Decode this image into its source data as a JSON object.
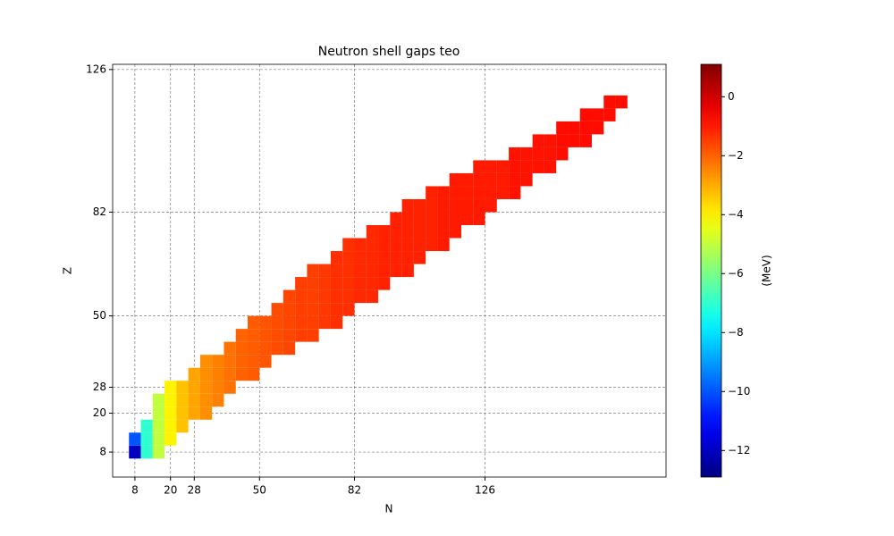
{
  "chart_data": {
    "type": "scatter",
    "title": "Neutron shell gaps teo",
    "x_label": "N",
    "y_label": "Z",
    "colorbar_label": "(MeV)",
    "xlim": [
      0.5,
      187
    ],
    "ylim": [
      0.3,
      127.6
    ],
    "xticks": [
      8,
      20,
      28,
      50,
      82,
      126
    ],
    "yticks": [
      8,
      20,
      28,
      50,
      82,
      126
    ],
    "clim": [
      -12.9,
      1.1
    ],
    "cticks": [
      {
        "value": 0,
        "label": "0"
      },
      {
        "value": -2,
        "label": "−2"
      },
      {
        "value": -4,
        "label": "−4"
      },
      {
        "value": -6,
        "label": "−6"
      },
      {
        "value": -8,
        "label": "−8"
      },
      {
        "value": -10,
        "label": "−10"
      },
      {
        "value": -12,
        "label": "−12"
      }
    ],
    "colormap": "jet",
    "grid": true,
    "x": [
      8,
      12,
      16,
      8,
      12,
      16,
      20,
      12,
      16,
      20,
      24,
      16,
      20,
      24,
      28,
      32,
      16,
      20,
      24,
      28,
      32,
      36,
      20,
      24,
      28,
      32,
      36,
      40,
      28,
      32,
      36,
      40,
      44,
      48,
      32,
      36,
      40,
      44,
      48,
      52,
      40,
      44,
      48,
      52,
      56,
      60,
      44,
      48,
      52,
      56,
      60,
      64,
      68,
      48,
      52,
      56,
      60,
      64,
      68,
      72,
      76,
      56,
      60,
      64,
      68,
      72,
      76,
      80,
      60,
      64,
      68,
      72,
      76,
      80,
      84,
      88,
      64,
      68,
      72,
      76,
      80,
      84,
      88,
      92,
      68,
      72,
      76,
      80,
      84,
      88,
      92,
      96,
      100,
      76,
      80,
      84,
      88,
      92,
      96,
      100,
      104,
      80,
      84,
      88,
      92,
      96,
      100,
      104,
      108,
      112,
      88,
      92,
      96,
      100,
      104,
      108,
      112,
      116,
      96,
      100,
      104,
      108,
      112,
      116,
      120,
      124,
      100,
      104,
      108,
      112,
      116,
      120,
      124,
      128,
      108,
      112,
      116,
      120,
      124,
      128,
      132,
      136,
      116,
      120,
      124,
      128,
      132,
      136,
      140,
      124,
      128,
      132,
      136,
      140,
      144,
      148,
      136,
      140,
      144,
      148,
      152,
      144,
      148,
      152,
      156,
      160,
      152,
      156,
      160,
      164,
      160,
      164,
      168,
      168,
      172
    ],
    "y": [
      8,
      8,
      8,
      12,
      12,
      12,
      12,
      16,
      16,
      16,
      16,
      20,
      20,
      20,
      20,
      20,
      24,
      24,
      24,
      24,
      24,
      24,
      28,
      28,
      28,
      28,
      28,
      28,
      32,
      32,
      32,
      32,
      32,
      32,
      36,
      36,
      36,
      36,
      36,
      36,
      40,
      40,
      40,
      40,
      40,
      40,
      44,
      44,
      44,
      44,
      44,
      44,
      44,
      48,
      48,
      48,
      48,
      48,
      48,
      48,
      48,
      52,
      52,
      52,
      52,
      52,
      52,
      52,
      56,
      56,
      56,
      56,
      56,
      56,
      56,
      56,
      60,
      60,
      60,
      60,
      60,
      60,
      60,
      60,
      64,
      64,
      64,
      64,
      64,
      64,
      64,
      64,
      64,
      68,
      68,
      68,
      68,
      68,
      68,
      68,
      68,
      72,
      72,
      72,
      72,
      72,
      72,
      72,
      72,
      72,
      76,
      76,
      76,
      76,
      76,
      76,
      76,
      76,
      80,
      80,
      80,
      80,
      80,
      80,
      80,
      80,
      84,
      84,
      84,
      84,
      84,
      84,
      84,
      84,
      88,
      88,
      88,
      88,
      88,
      88,
      88,
      88,
      92,
      92,
      92,
      92,
      92,
      92,
      92,
      96,
      96,
      96,
      96,
      96,
      96,
      96,
      100,
      100,
      100,
      100,
      100,
      104,
      104,
      104,
      104,
      104,
      108,
      108,
      108,
      108,
      112,
      112,
      112,
      116,
      116
    ],
    "color_values": [
      -12,
      -7,
      -5,
      -10,
      -7,
      -5,
      -4,
      -7,
      -5,
      -4,
      -3.3,
      -5,
      -4,
      -3.3,
      -2.9,
      -2.6,
      -5,
      -4,
      -3.3,
      -2.9,
      -2.6,
      -2.4,
      -4,
      -3.3,
      -2.9,
      -2.6,
      -2.4,
      -2.2,
      -2.9,
      -2.6,
      -2.4,
      -2.2,
      -2,
      -1.9,
      -2.6,
      -2.4,
      -2.2,
      -2,
      -1.9,
      -1.8,
      -2.2,
      -2,
      -1.9,
      -1.8,
      -1.7,
      -1.6,
      -2,
      -1.9,
      -1.8,
      -1.7,
      -1.6,
      -1.5,
      -1.5,
      -1.9,
      -1.8,
      -1.7,
      -1.6,
      -1.5,
      -1.5,
      -1.4,
      -1.3,
      -1.7,
      -1.6,
      -1.5,
      -1.5,
      -1.4,
      -1.3,
      -1.3,
      -1.6,
      -1.5,
      -1.5,
      -1.4,
      -1.3,
      -1.3,
      -1.2,
      -1.2,
      -1.5,
      -1.5,
      -1.4,
      -1.3,
      -1.3,
      -1.2,
      -1.2,
      -1.1,
      -1.5,
      -1.4,
      -1.3,
      -1.3,
      -1.2,
      -1.2,
      -1.1,
      -1.1,
      -1.1,
      -1.3,
      -1.3,
      -1.2,
      -1.2,
      -1.1,
      -1.1,
      -1.1,
      -1.1,
      -1.3,
      -1.2,
      -1.2,
      -1.1,
      -1.1,
      -1.1,
      -1.1,
      -1.1,
      -1,
      -1.2,
      -1.1,
      -1.1,
      -1.1,
      -1.1,
      -1.1,
      -1,
      -1,
      -1.1,
      -1.1,
      -1.1,
      -1.1,
      -1,
      -1,
      -1,
      -1,
      -1.1,
      -1.1,
      -1.1,
      -1,
      -1,
      -1,
      -1,
      -1,
      -1.1,
      -1,
      -1,
      -1,
      -1,
      -1,
      -1,
      -0.9,
      -1,
      -1,
      -1,
      -1,
      -1,
      -0.9,
      -0.9,
      -1,
      -1,
      -1,
      -0.9,
      -0.9,
      -0.9,
      -0.9,
      -0.9,
      -0.9,
      -0.9,
      -0.9,
      -0.8,
      -0.9,
      -0.9,
      -0.8,
      -0.8,
      -0.8,
      -0.8,
      -0.8,
      -0.8,
      -0.8,
      -0.8,
      -0.8,
      -0.8,
      -0.8,
      -0.8
    ]
  }
}
